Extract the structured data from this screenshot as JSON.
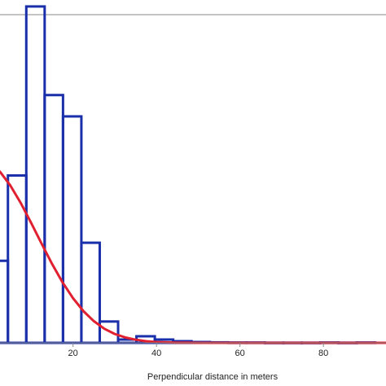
{
  "chart_data": {
    "type": "bar",
    "title": "",
    "xlabel": "Perpendicular distance in meters",
    "ylabel": "",
    "xlim": [
      2.5,
      95
    ],
    "ylim": [
      0,
      0.2
    ],
    "x_ticks": [
      20,
      40,
      60,
      80
    ],
    "x_tick_labels": [
      "20",
      "40",
      "60",
      "80"
    ],
    "grid": false,
    "legend": "none",
    "histogram": {
      "bin_width": 4.4,
      "bins": [
        {
          "x0": 0.0,
          "x1": 4.4,
          "value": 0.05
        },
        {
          "x0": 4.4,
          "x1": 8.8,
          "value": 0.102
        },
        {
          "x0": 8.8,
          "x1": 13.2,
          "value": 0.205
        },
        {
          "x0": 13.2,
          "x1": 17.6,
          "value": 0.151
        },
        {
          "x0": 17.6,
          "x1": 22.0,
          "value": 0.138
        },
        {
          "x0": 22.0,
          "x1": 26.4,
          "value": 0.061
        },
        {
          "x0": 26.4,
          "x1": 30.8,
          "value": 0.013
        },
        {
          "x0": 30.8,
          "x1": 35.2,
          "value": 0.002
        },
        {
          "x0": 35.2,
          "x1": 39.6,
          "value": 0.004
        },
        {
          "x0": 39.6,
          "x1": 44.0,
          "value": 0.002
        },
        {
          "x0": 44.0,
          "x1": 48.4,
          "value": 0.001
        },
        {
          "x0": 48.4,
          "x1": 52.8,
          "value": 0.0005
        },
        {
          "x0": 52.8,
          "x1": 57.2,
          "value": 0.0003
        },
        {
          "x0": 57.2,
          "x1": 61.6,
          "value": 0.0002
        },
        {
          "x0": 61.6,
          "x1": 66.0,
          "value": 0.0002
        },
        {
          "x0": 66.0,
          "x1": 70.4,
          "value": 0.0001
        },
        {
          "x0": 70.4,
          "x1": 74.8,
          "value": 0.0001
        },
        {
          "x0": 74.8,
          "x1": 79.2,
          "value": 0.0001
        },
        {
          "x0": 79.2,
          "x1": 83.6,
          "value": 0.0002
        },
        {
          "x0": 83.6,
          "x1": 88.0,
          "value": 0.0001
        },
        {
          "x0": 88.0,
          "x1": 92.4,
          "value": 0.0002
        }
      ]
    },
    "fitted_curve": {
      "kind": "half-normal",
      "x": [
        0,
        2.5,
        5,
        7.5,
        10,
        12.5,
        15,
        17.5,
        20,
        22.5,
        25,
        27.5,
        30,
        32.5,
        35,
        37.5,
        40,
        42.5,
        45,
        47.5,
        50,
        52.5,
        55,
        57.5,
        60,
        70,
        80,
        90,
        95
      ],
      "y": [
        0.1085,
        0.1043,
        0.0958,
        0.0851,
        0.0729,
        0.0603,
        0.048,
        0.0368,
        0.0272,
        0.0193,
        0.0132,
        0.0086,
        0.0054,
        0.0033,
        0.0019,
        0.001,
        0.0005,
        0.0003,
        0.0001,
        0.0001,
        0.0,
        0.0,
        0.0,
        0.0,
        0.0,
        0.0,
        0.0,
        0.0,
        0.0
      ]
    },
    "colors": {
      "bars": "#1a2faa",
      "curve": "#e02030",
      "axis": "#888888",
      "text": "#222222"
    }
  }
}
